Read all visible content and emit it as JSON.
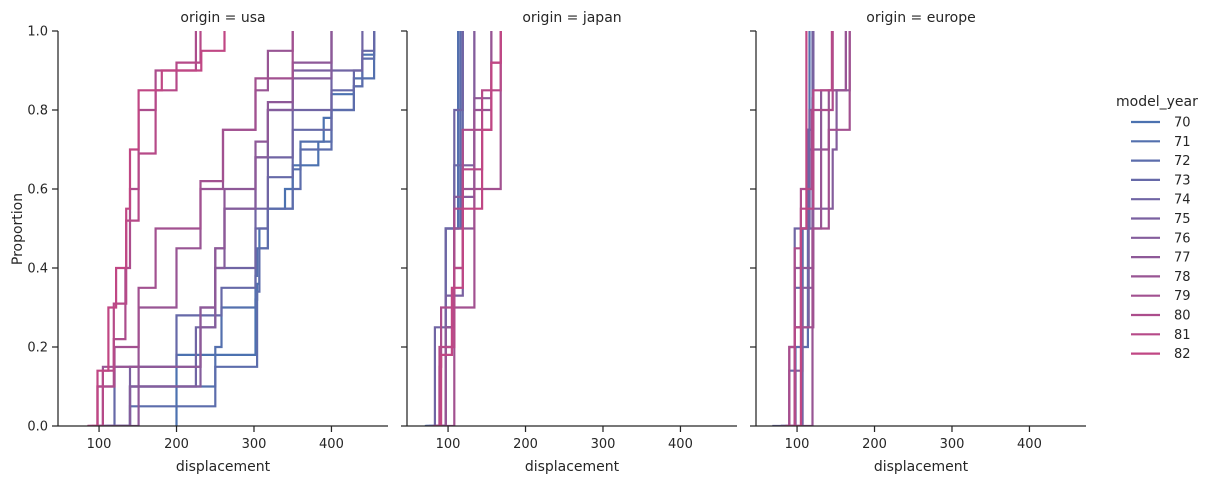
{
  "chart_data": {
    "type": "line",
    "subtype": "ecdf-step",
    "ylabel": "Proportion",
    "xlabel": "displacement",
    "xlim": [
      47,
      473
    ],
    "ylim": [
      0,
      1
    ],
    "xticks": [
      100,
      200,
      300,
      400
    ],
    "yticks": [
      0.0,
      0.2,
      0.4,
      0.6,
      0.8,
      1.0
    ],
    "ytick_labels": [
      "0.0",
      "0.2",
      "0.4",
      "0.6",
      "0.8",
      "1.0"
    ],
    "legend": {
      "title": "model_year",
      "position": "right",
      "entries": [
        {
          "label": "70",
          "color": "#4c72b0"
        },
        {
          "label": "71",
          "color": "#5470ae"
        },
        {
          "label": "72",
          "color": "#5c6dac"
        },
        {
          "label": "73",
          "color": "#6669a8"
        },
        {
          "label": "74",
          "color": "#7065a4"
        },
        {
          "label": "75",
          "color": "#7a61a0"
        },
        {
          "label": "76",
          "color": "#845d9c"
        },
        {
          "label": "77",
          "color": "#8e5998"
        },
        {
          "label": "78",
          "color": "#985594"
        },
        {
          "label": "79",
          "color": "#a25190"
        },
        {
          "label": "80",
          "color": "#ac4d8c"
        },
        {
          "label": "81",
          "color": "#b64a88"
        },
        {
          "label": "82",
          "color": "#c04784"
        }
      ]
    },
    "panels": [
      {
        "title": "origin = usa",
        "series": [
          {
            "name": "70",
            "x": [
              199,
              200,
              225,
              250,
              258,
              302,
              304,
              307,
              318,
              340,
              350,
              383,
              390,
              400,
              429,
              440,
              455
            ],
            "y": [
              0.0,
              0.18,
              0.18,
              0.18,
              0.18,
              0.32,
              0.36,
              0.5,
              0.55,
              0.6,
              0.66,
              0.72,
              0.78,
              0.84,
              0.86,
              0.94,
              1.0
            ]
          },
          {
            "name": "71",
            "x": [
              98,
              140,
              250,
              258,
              302,
              304,
              318,
              350,
              360,
              400,
              429,
              455
            ],
            "y": [
              0.0,
              0.1,
              0.2,
              0.3,
              0.38,
              0.45,
              0.55,
              0.65,
              0.72,
              0.8,
              0.88,
              1.0
            ]
          },
          {
            "name": "72",
            "x": [
              122,
              140,
              250,
              304,
              307,
              318,
              350,
              360,
              400,
              429,
              440,
              455
            ],
            "y": [
              0.0,
              0.05,
              0.15,
              0.34,
              0.45,
              0.55,
              0.6,
              0.7,
              0.8,
              0.86,
              0.93,
              1.0
            ]
          },
          {
            "name": "73",
            "x": [
              98,
              120,
              200,
              258,
              302,
              318,
              350,
              400,
              429,
              440,
              455
            ],
            "y": [
              0.0,
              0.15,
              0.28,
              0.35,
              0.5,
              0.63,
              0.75,
              0.85,
              0.9,
              0.95,
              1.0
            ]
          },
          {
            "name": "74",
            "x": [
              110,
              140,
              225,
              250,
              302,
              318,
              350,
              400,
              440
            ],
            "y": [
              0.0,
              0.1,
              0.25,
              0.4,
              0.55,
              0.68,
              0.8,
              0.9,
              1.0
            ]
          },
          {
            "name": "75",
            "x": [
              108,
              140,
              231,
              250,
              262,
              302,
              318,
              350,
              400
            ],
            "y": [
              0.0,
              0.15,
              0.3,
              0.45,
              0.55,
              0.68,
              0.8,
              0.9,
              1.0
            ]
          },
          {
            "name": "76",
            "x": [
              97,
              140,
              231,
              250,
              262,
              302,
              318,
              350,
              400
            ],
            "y": [
              0.0,
              0.1,
              0.25,
              0.4,
              0.55,
              0.68,
              0.8,
              0.88,
              1.0
            ]
          },
          {
            "name": "77",
            "x": [
              98,
              151,
              231,
              250,
              262,
              302,
              318,
              350,
              400
            ],
            "y": [
              0.0,
              0.15,
              0.3,
              0.45,
              0.6,
              0.72,
              0.82,
              0.92,
              1.0
            ]
          },
          {
            "name": "78",
            "x": [
              89,
              105,
              151,
              200,
              231,
              260,
              302,
              318,
              350
            ],
            "y": [
              0.0,
              0.15,
              0.3,
              0.45,
              0.6,
              0.75,
              0.85,
              0.95,
              1.0
            ]
          },
          {
            "name": "79",
            "x": [
              85,
              98,
              120,
              151,
              173,
              231,
              260,
              302,
              350
            ],
            "y": [
              0.0,
              0.1,
              0.2,
              0.35,
              0.5,
              0.62,
              0.75,
              0.88,
              1.0
            ]
          },
          {
            "name": "80",
            "x": [
              86,
              98,
              119,
              134,
              140,
              151,
              173,
              225
            ],
            "y": [
              0.0,
              0.1,
              0.22,
              0.4,
              0.6,
              0.8,
              0.9,
              1.0
            ]
          },
          {
            "name": "81",
            "x": [
              85,
              105,
              119,
              135,
              151,
              173,
              200,
              231
            ],
            "y": [
              0.0,
              0.14,
              0.31,
              0.52,
              0.69,
              0.85,
              0.92,
              1.0
            ]
          },
          {
            "name": "82",
            "x": [
              91,
              98,
              112,
              122,
              135,
              140,
              151,
              181,
              232,
              262
            ],
            "y": [
              0.0,
              0.14,
              0.3,
              0.4,
              0.55,
              0.7,
              0.85,
              0.9,
              0.95,
              1.0
            ]
          }
        ]
      },
      {
        "title": "origin = japan",
        "series": [
          {
            "name": "70",
            "x": [
              70,
              97,
              113
            ],
            "y": [
              0.0,
              0.5,
              1.0
            ]
          },
          {
            "name": "71",
            "x": [
              71,
              97,
              113
            ],
            "y": [
              0.0,
              0.5,
              1.0
            ]
          },
          {
            "name": "72",
            "x": [
              72,
              97,
              108,
              116
            ],
            "y": [
              0.0,
              0.25,
              0.5,
              1.0
            ]
          },
          {
            "name": "73",
            "x": [
              75,
              97,
              108,
              119
            ],
            "y": [
              0.0,
              0.25,
              0.66,
              1.0
            ]
          },
          {
            "name": "74",
            "x": [
              76,
              83,
              97,
              108,
              119
            ],
            "y": [
              0.0,
              0.25,
              0.5,
              0.8,
              1.0
            ]
          },
          {
            "name": "75",
            "x": [
              80,
              97,
              119,
              134
            ],
            "y": [
              0.0,
              0.33,
              0.66,
              1.0
            ]
          },
          {
            "name": "76",
            "x": [
              85,
              97,
              108,
              134
            ],
            "y": [
              0.0,
              0.25,
              0.58,
              1.0
            ]
          },
          {
            "name": "77",
            "x": [
              85,
              97,
              108,
              134,
              156
            ],
            "y": [
              0.0,
              0.25,
              0.5,
              0.83,
              1.0
            ]
          },
          {
            "name": "78",
            "x": [
              86,
              97,
              108,
              119,
              134,
              156
            ],
            "y": [
              0.0,
              0.2,
              0.4,
              0.6,
              0.8,
              1.0
            ]
          },
          {
            "name": "79",
            "x": [
              86,
              108,
              134,
              168
            ],
            "y": [
              0.0,
              0.3,
              0.6,
              1.0
            ]
          },
          {
            "name": "80",
            "x": [
              85,
              89,
              91,
              108,
              119,
              156,
              168
            ],
            "y": [
              0.0,
              0.15,
              0.3,
              0.55,
              0.75,
              0.92,
              1.0
            ]
          },
          {
            "name": "81",
            "x": [
              81,
              89,
              108,
              119,
              144,
              168
            ],
            "y": [
              0.0,
              0.2,
              0.4,
              0.65,
              0.85,
              1.0
            ]
          },
          {
            "name": "82",
            "x": [
              89,
              91,
              105,
              119,
              144,
              156,
              168
            ],
            "y": [
              0.0,
              0.18,
              0.35,
              0.55,
              0.75,
              0.92,
              1.0
            ]
          }
        ]
      },
      {
        "title": "origin = europe",
        "series": [
          {
            "name": "70",
            "x": [
              97,
              107,
              113,
              121
            ],
            "y": [
              0.0,
              0.5,
              0.75,
              1.0
            ]
          },
          {
            "name": "71",
            "x": [
              79,
              97,
              107,
              114,
              116
            ],
            "y": [
              0.0,
              0.25,
              0.5,
              0.75,
              1.0
            ]
          },
          {
            "name": "72",
            "x": [
              96,
              98,
              114,
              116,
              121
            ],
            "y": [
              0.0,
              0.2,
              0.5,
              0.7,
              1.0
            ]
          },
          {
            "name": "73",
            "x": [
              68,
              90,
              97,
              107,
              114,
              120
            ],
            "y": [
              0.0,
              0.14,
              0.35,
              0.5,
              0.75,
              1.0
            ]
          },
          {
            "name": "74",
            "x": [
              79,
              90,
              97,
              116,
              121
            ],
            "y": [
              0.0,
              0.2,
              0.5,
              0.8,
              1.0
            ]
          },
          {
            "name": "75",
            "x": [
              90,
              107,
              115,
              120,
              121
            ],
            "y": [
              0.0,
              0.25,
              0.5,
              0.83,
              1.0
            ]
          },
          {
            "name": "76",
            "x": [
              79,
              98,
              107,
              120,
              146,
              151,
              168
            ],
            "y": [
              0.0,
              0.14,
              0.35,
              0.55,
              0.7,
              0.85,
              1.0
            ]
          },
          {
            "name": "77",
            "x": [
              90,
              97,
              121,
              131,
              163
            ],
            "y": [
              0.0,
              0.4,
              0.7,
              0.85,
              1.0
            ]
          },
          {
            "name": "78",
            "x": [
              90,
              120,
              121,
              131,
              141,
              163
            ],
            "y": [
              0.0,
              0.25,
              0.5,
              0.7,
              0.85,
              1.0
            ]
          },
          {
            "name": "79",
            "x": [
              90,
              97,
              120,
              141,
              168
            ],
            "y": [
              0.0,
              0.25,
              0.5,
              0.75,
              1.0
            ]
          },
          {
            "name": "80",
            "x": [
              85,
              90,
              97,
              105,
              119,
              146
            ],
            "y": [
              0.0,
              0.2,
              0.45,
              0.6,
              0.8,
              1.0
            ]
          },
          {
            "name": "81",
            "x": [
              85,
              97,
              105,
              121,
              145
            ],
            "y": [
              0.0,
              0.25,
              0.55,
              0.85,
              1.0
            ]
          },
          {
            "name": "82",
            "x": [
              97,
              105,
              112
            ],
            "y": [
              0.0,
              0.5,
              1.0
            ]
          }
        ]
      }
    ]
  }
}
